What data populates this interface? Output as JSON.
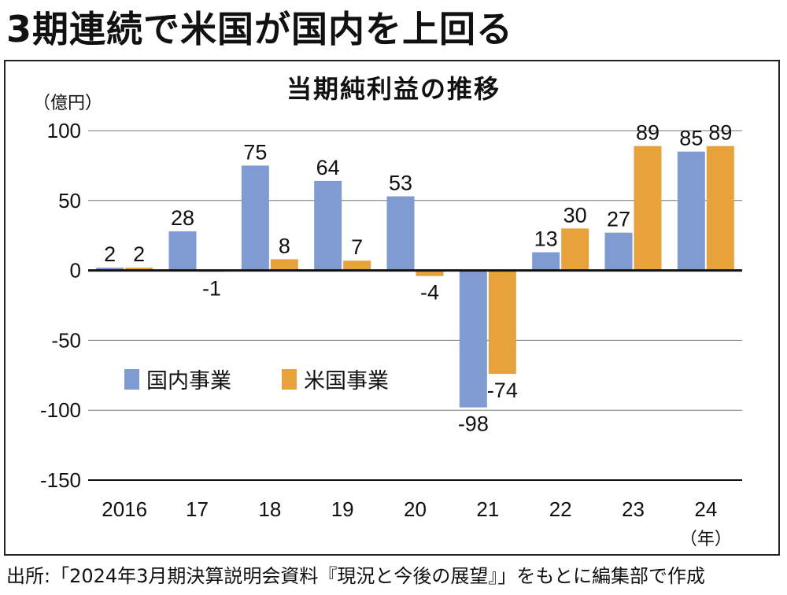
{
  "headline": "3期連続で米国が国内を上回る",
  "source": "出所:「2024年3月期決算説明会資料『現況と今後の展望』」をもとに編集部で作成",
  "colors": {
    "domestic": "#7f9bd2",
    "us": "#e8a23c",
    "grid": "#777777",
    "zero": "#111111"
  },
  "chart_data": {
    "type": "bar",
    "title": "当期純利益の推移",
    "ylabel": "（億円）",
    "xlabel": "（年）",
    "ylim": [
      -150,
      100
    ],
    "yticks": [
      100,
      50,
      0,
      -50,
      -100,
      -150
    ],
    "categories": [
      "2016",
      "17",
      "18",
      "19",
      "20",
      "21",
      "22",
      "23",
      "24"
    ],
    "legend_position": "left-middle",
    "series": [
      {
        "name": "国内事業",
        "values": [
          2,
          28,
          75,
          64,
          53,
          -98,
          13,
          27,
          85
        ]
      },
      {
        "name": "米国事業",
        "values": [
          2,
          -1,
          8,
          7,
          -4,
          -74,
          30,
          89,
          89
        ]
      }
    ]
  }
}
